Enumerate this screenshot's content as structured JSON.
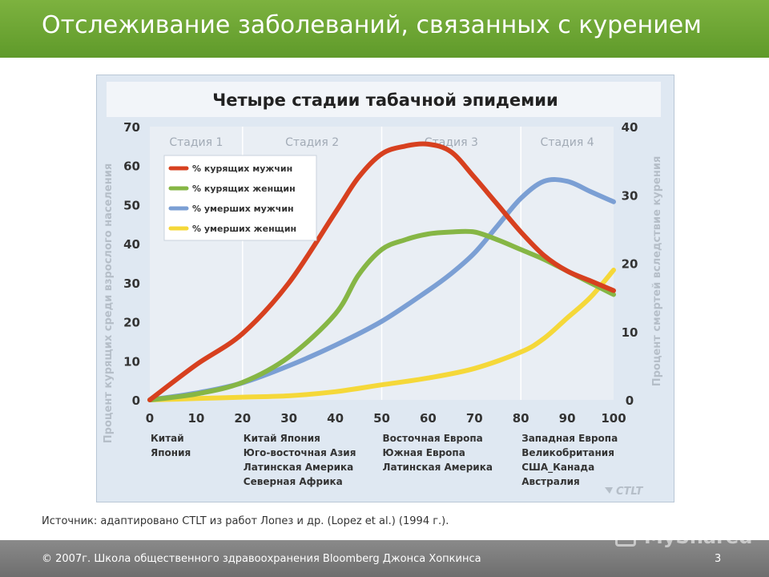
{
  "slide": {
    "title": "Отслеживание заболеваний, связанных с курением",
    "source": "Источник: адаптировано CTLT из работ Лопез и др. (Lopez et al.) (1994 г.).",
    "footer": "2007г. Школа общественного здравоохранения Bloomberg Джонса Хопкинса",
    "copyright_symbol": "©",
    "page_number": "3",
    "watermark": "MyShared"
  },
  "chart_data": {
    "type": "line",
    "title": "Четыре стадии табачной эпидемии",
    "logo_text": "CTLT",
    "xlim": [
      0,
      100
    ],
    "ylim_left": [
      0,
      70
    ],
    "ylim_right": [
      0,
      40
    ],
    "ylabel_left": "Процент курящих среди взрослого населения",
    "ylabel_right": "Процент смертей вследствие курения",
    "x_ticks": [
      "0",
      "10",
      "20",
      "30",
      "40",
      "50",
      "60",
      "70",
      "80",
      "90",
      "100"
    ],
    "y_left_ticks": [
      "0",
      "10",
      "20",
      "30",
      "40",
      "50",
      "60",
      "70"
    ],
    "y_right_ticks": [
      "0",
      "10",
      "20",
      "30",
      "40"
    ],
    "stages": [
      {
        "label": "Стадия 1",
        "from": 0,
        "to": 20
      },
      {
        "label": "Стадия 2",
        "from": 20,
        "to": 50
      },
      {
        "label": "Стадия 3",
        "from": 50,
        "to": 80
      },
      {
        "label": "Стадия 4",
        "from": 80,
        "to": 100
      }
    ],
    "legend_position": "top-left",
    "series": [
      {
        "name": "% курящих мужчин",
        "axis": "left",
        "color": "#d7401f",
        "x": [
          0,
          10,
          20,
          30,
          40,
          45,
          50,
          55,
          60,
          65,
          70,
          75,
          80,
          85,
          90,
          95,
          100
        ],
        "y": [
          0,
          9,
          17,
          30,
          48,
          57,
          63,
          65,
          65.5,
          63.5,
          57,
          50,
          43,
          37,
          33,
          30.5,
          28
        ]
      },
      {
        "name": "% курящих женщин",
        "axis": "left",
        "color": "#86b645",
        "x": [
          0,
          10,
          20,
          30,
          40,
          45,
          50,
          55,
          60,
          65,
          70,
          75,
          80,
          85,
          90,
          95,
          100
        ],
        "y": [
          0,
          1.5,
          4.5,
          11,
          22,
          32,
          38.5,
          41,
          42.5,
          43,
          43,
          41,
          38.5,
          36,
          33,
          30,
          27
        ]
      },
      {
        "name": "% умерших мужчин",
        "axis": "right",
        "color": "#7b9fd4",
        "x": [
          0,
          10,
          20,
          30,
          40,
          50,
          60,
          65,
          70,
          75,
          80,
          85,
          90,
          95,
          100
        ],
        "y": [
          0,
          1,
          2.5,
          5,
          8,
          11.5,
          16,
          18.5,
          21.5,
          25.5,
          29.5,
          32,
          32,
          30.5,
          29
        ]
      },
      {
        "name": "% умерших женщин",
        "axis": "right",
        "color": "#f5d839",
        "x": [
          0,
          10,
          20,
          30,
          40,
          50,
          60,
          70,
          80,
          85,
          90,
          95,
          100
        ],
        "y": [
          0,
          0.2,
          0.4,
          0.6,
          1.2,
          2.2,
          3.2,
          4.6,
          7,
          9,
          12,
          15,
          19
        ]
      }
    ],
    "region_groups": [
      {
        "at": 0,
        "lines": [
          "Китай",
          "Япония"
        ]
      },
      {
        "at": 20,
        "lines": [
          "Китай Япония",
          "Юго-восточная Азия",
          "Латинская Америка",
          "Северная Африка"
        ]
      },
      {
        "at": 50,
        "lines": [
          "Восточная Европа",
          "Южная Европа",
          "Латинская Америка"
        ]
      },
      {
        "at": 80,
        "lines": [
          "Западная Европа",
          "Великобритания",
          "США_Канада",
          "Австралия"
        ]
      }
    ]
  }
}
